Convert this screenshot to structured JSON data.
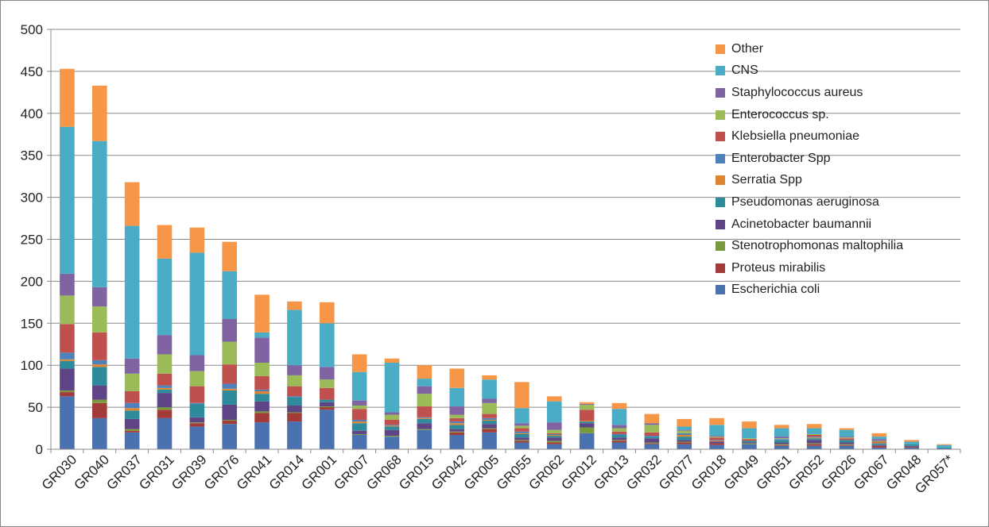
{
  "chart_data": {
    "type": "bar",
    "stacked": true,
    "ylim": [
      0,
      500
    ],
    "yticks": [
      0,
      50,
      100,
      150,
      200,
      250,
      300,
      350,
      400,
      450,
      500
    ],
    "grid": true,
    "legend_position": "top-right",
    "categories": [
      "GR030",
      "GR040",
      "GR037",
      "GR031",
      "GR039",
      "GR076",
      "GR041",
      "GR014",
      "GR001",
      "GR007",
      "GR068",
      "GR015",
      "GR042",
      "GR005",
      "GR055",
      "GR062",
      "GR012",
      "GR013",
      "GR032",
      "GR077",
      "GR018",
      "GR049",
      "GR051",
      "GR052",
      "GR026",
      "GR067",
      "GR048",
      "GR057*"
    ],
    "series": [
      {
        "name": "Escherichia coli",
        "color": "#4a72b0",
        "values": [
          63,
          37,
          20,
          37,
          27,
          30,
          32,
          33,
          47,
          17,
          15,
          23,
          17,
          20,
          8,
          6,
          19,
          8,
          6,
          6,
          5,
          6,
          4,
          4,
          4,
          2,
          2,
          1
        ]
      },
      {
        "name": "Proteus mirabilis",
        "color": "#a33b3b",
        "values": [
          5,
          18,
          2,
          10,
          4,
          4,
          11,
          10,
          3,
          0,
          0,
          0,
          3,
          4,
          2,
          2,
          0,
          2,
          1,
          2,
          2,
          0,
          1,
          2,
          1,
          2,
          1,
          0
        ]
      },
      {
        "name": "Stenotrophomonas maltophilia",
        "color": "#7a9a3e",
        "values": [
          2,
          4,
          2,
          3,
          1,
          1,
          2,
          1,
          1,
          1,
          1,
          1,
          1,
          1,
          1,
          2,
          7,
          1,
          1,
          1,
          0,
          1,
          1,
          1,
          1,
          0,
          0,
          0
        ]
      },
      {
        "name": "Acinetobacter baumannii",
        "color": "#5f4585",
        "values": [
          26,
          17,
          12,
          17,
          6,
          18,
          12,
          8,
          5,
          4,
          7,
          7,
          3,
          5,
          3,
          4,
          5,
          3,
          5,
          2,
          2,
          1,
          2,
          4,
          2,
          1,
          1,
          0
        ]
      },
      {
        "name": "Pseudomonas aeruginosa",
        "color": "#2e8b9b",
        "values": [
          9,
          22,
          10,
          4,
          16,
          17,
          9,
          10,
          3,
          9,
          4,
          5,
          5,
          4,
          4,
          2,
          2,
          3,
          2,
          4,
          0,
          2,
          3,
          2,
          3,
          2,
          2,
          1
        ]
      },
      {
        "name": "Serratia Spp",
        "color": "#e0852f",
        "values": [
          2,
          3,
          3,
          2,
          0,
          2,
          3,
          0,
          0,
          2,
          1,
          1,
          2,
          1,
          1,
          1,
          1,
          0,
          0,
          2,
          1,
          0,
          0,
          1,
          0,
          1,
          0,
          0
        ]
      },
      {
        "name": "Enterobacter Spp",
        "color": "#4f81bd",
        "values": [
          8,
          5,
          6,
          3,
          1,
          6,
          2,
          1,
          0,
          2,
          1,
          1,
          2,
          2,
          2,
          1,
          0,
          1,
          1,
          2,
          1,
          0,
          1,
          1,
          0,
          0,
          0,
          0
        ]
      },
      {
        "name": "Klebsiella pneumoniae",
        "color": "#c0504d",
        "values": [
          34,
          33,
          14,
          14,
          20,
          23,
          16,
          12,
          14,
          13,
          6,
          13,
          4,
          5,
          4,
          1,
          13,
          3,
          4,
          0,
          3,
          2,
          0,
          2,
          2,
          1,
          0,
          0
        ]
      },
      {
        "name": "Enterococcus sp.",
        "color": "#9bbb59",
        "values": [
          34,
          31,
          21,
          23,
          18,
          27,
          16,
          13,
          10,
          4,
          6,
          15,
          4,
          13,
          3,
          4,
          6,
          4,
          9,
          3,
          1,
          1,
          1,
          1,
          1,
          1,
          0,
          0
        ]
      },
      {
        "name": "Staphylococcus aureus",
        "color": "#8064a2",
        "values": [
          26,
          23,
          18,
          23,
          19,
          27,
          30,
          12,
          15,
          6,
          3,
          9,
          10,
          5,
          3,
          9,
          1,
          4,
          2,
          1,
          1,
          0,
          2,
          0,
          1,
          2,
          0,
          0
        ]
      },
      {
        "name": "CNS",
        "color": "#4bacc6",
        "values": [
          175,
          174,
          158,
          91,
          122,
          57,
          6,
          66,
          52,
          34,
          59,
          9,
          22,
          23,
          18,
          25,
          0,
          19,
          0,
          4,
          13,
          12,
          10,
          7,
          8,
          3,
          3,
          3
        ]
      },
      {
        "name": "Other",
        "color": "#f79646",
        "values": [
          69,
          66,
          52,
          40,
          30,
          35,
          45,
          10,
          25,
          21,
          5,
          16,
          23,
          5,
          31,
          6,
          2,
          7,
          11,
          9,
          8,
          8,
          4,
          5,
          2,
          4,
          2,
          1
        ]
      }
    ]
  }
}
